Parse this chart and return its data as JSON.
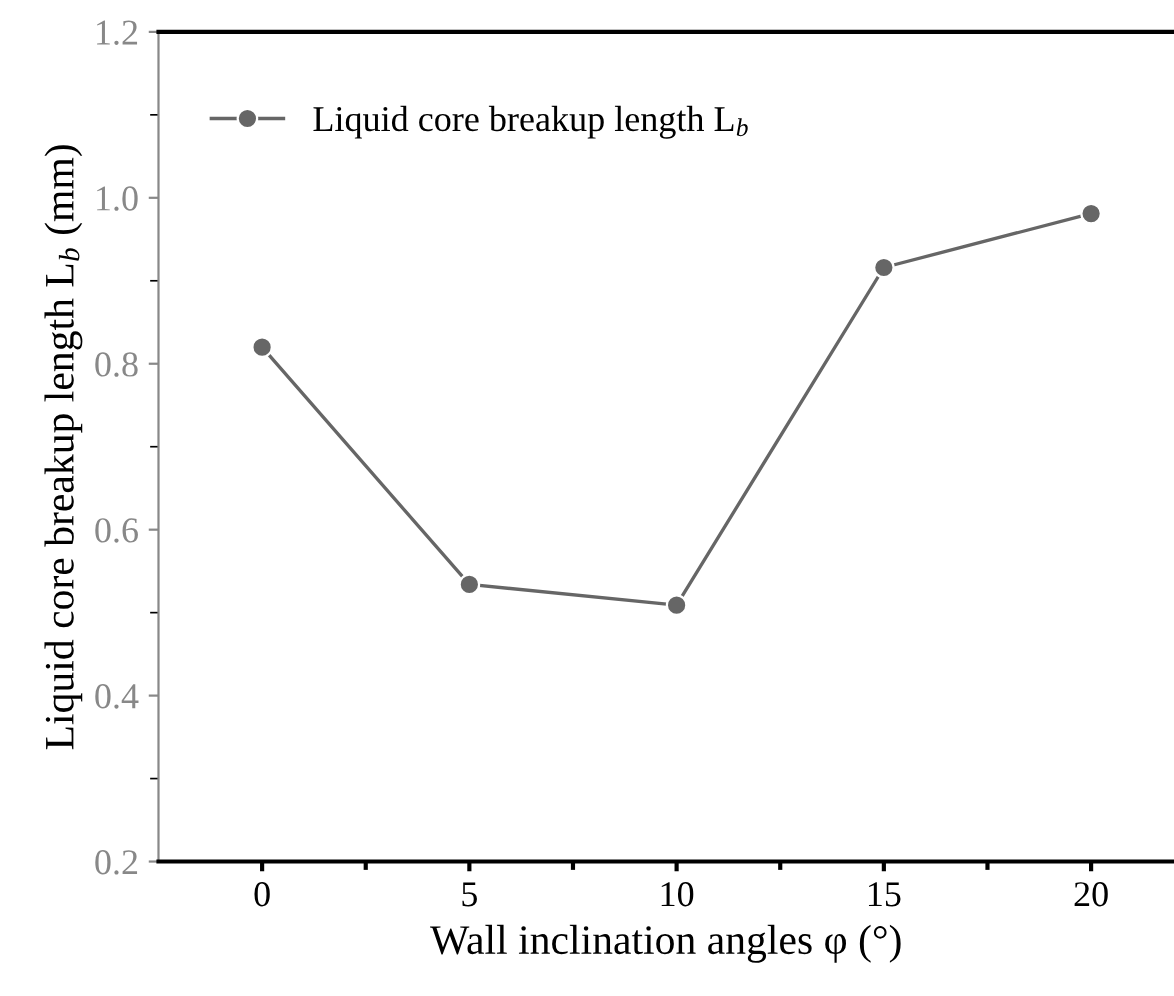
{
  "chart_data": {
    "type": "line",
    "xlabel": "Wall inclination angles φ (°)",
    "ylabel": "Liquid core breakup length L$_{b}$ (mm)",
    "x": [
      0,
      5,
      10,
      15,
      20
    ],
    "series": [
      {
        "name": "Liquid core breakup length L$_{b}$",
        "color": "#666666",
        "values": [
          0.82,
          0.534,
          0.509,
          0.916,
          0.981
        ]
      }
    ],
    "xlim": [
      -2.5,
      22
    ],
    "xticks": [
      0,
      5,
      10,
      15,
      20
    ],
    "ylim": [
      0.2,
      1.2
    ],
    "yticks": [
      {
        "value": 0.2,
        "label": "0.2"
      },
      {
        "value": 0.4,
        "label": "0.4"
      },
      {
        "value": 0.6,
        "label": "0.6"
      },
      {
        "value": 0.8,
        "label": "0.8"
      },
      {
        "value": 1.0,
        "label": "1.0"
      },
      {
        "value": 1.2,
        "label": "1.2"
      }
    ],
    "marker": "circle",
    "line_style": "solid",
    "grid": false,
    "legend": "top left"
  }
}
